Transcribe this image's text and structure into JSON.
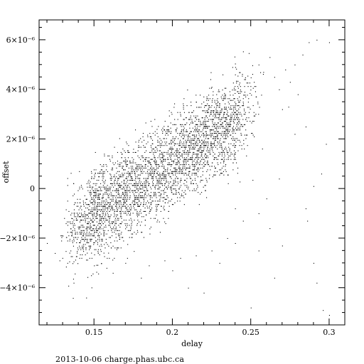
{
  "chart_data": {
    "type": "scatter",
    "xlabel": "delay",
    "ylabel": "offset",
    "xlim": [
      0.115,
      0.31
    ],
    "ylim": [
      -5.5e-06,
      6.8e-06
    ],
    "x_ticks": [
      {
        "value": 0.15,
        "label": "0.15"
      },
      {
        "value": 0.2,
        "label": "0.2"
      },
      {
        "value": 0.25,
        "label": "0.25"
      },
      {
        "value": 0.3,
        "label": "0.3"
      }
    ],
    "y_ticks": [
      {
        "value": 6e-06,
        "label": "6×10⁻⁶"
      },
      {
        "value": 4e-06,
        "label": "4×10⁻⁶"
      },
      {
        "value": 2e-06,
        "label": "2×10⁻⁶"
      },
      {
        "value": 0,
        "label": "0"
      },
      {
        "value": -2e-06,
        "label": "−2×10⁻⁶"
      },
      {
        "value": -4e-06,
        "label": "−4×10⁻⁶"
      }
    ],
    "grid": false,
    "marker_color": "#000000",
    "core_trend": {
      "x": [
        0.14,
        0.245
      ],
      "y": [
        -1.5e-06,
        3e-06
      ],
      "spread": 9e-07,
      "n_points": 3600
    },
    "points": [
      [
        0.12,
        -2.2e-06
      ],
      [
        0.125,
        -2.6e-06
      ],
      [
        0.128,
        -2.9e-06
      ],
      [
        0.13,
        -1.9e-06
      ],
      [
        0.133,
        -3e-06
      ],
      [
        0.137,
        -3.8e-06
      ],
      [
        0.145,
        -4.4e-06
      ],
      [
        0.158,
        -3.2e-06
      ],
      [
        0.18,
        -3.6e-06
      ],
      [
        0.2,
        -3.3e-06
      ],
      [
        0.22,
        -4.2e-06
      ],
      [
        0.23,
        -3e-06
      ],
      [
        0.24,
        -2.2e-06
      ],
      [
        0.255,
        -2.5e-06
      ],
      [
        0.262,
        -1.6e-06
      ],
      [
        0.265,
        -3.6e-06
      ],
      [
        0.27,
        -2.3e-06
      ],
      [
        0.285,
        -8e-07
      ],
      [
        0.286,
        -1.3e-06
      ],
      [
        0.29,
        -3e-06
      ],
      [
        0.292,
        -3.8e-06
      ],
      [
        0.296,
        -4.9e-06
      ],
      [
        0.3,
        -5.1e-06
      ],
      [
        0.25,
        -4.8e-06
      ],
      [
        0.21,
        -4e-06
      ],
      [
        0.298,
        1.8e-06
      ],
      [
        0.295,
        6e-07
      ],
      [
        0.29,
        1e-07
      ],
      [
        0.285,
        2.5e-06
      ],
      [
        0.28,
        3.8e-06
      ],
      [
        0.275,
        4.3e-06
      ],
      [
        0.27,
        3.2e-06
      ],
      [
        0.265,
        4.5e-06
      ],
      [
        0.262,
        5.3e-06
      ],
      [
        0.268,
        4e-06
      ],
      [
        0.272,
        4.8e-06
      ],
      [
        0.283,
        5.4e-06
      ],
      [
        0.287,
        5.9e-06
      ],
      [
        0.292,
        6e-06
      ],
      [
        0.3,
        5.9e-06
      ],
      [
        0.278,
        5e-06
      ],
      [
        0.255,
        5e-06
      ],
      [
        0.258,
        4.7e-06
      ],
      [
        0.252,
        4.3e-06
      ],
      [
        0.246,
        3.9e-06
      ],
      [
        0.24,
        4.6e-06
      ],
      [
        0.232,
        4.6e-06
      ],
      [
        0.228,
        3.8e-06
      ],
      [
        0.225,
        4.1e-06
      ],
      [
        0.215,
        3.5e-06
      ],
      [
        0.205,
        3e-06
      ],
      [
        0.19,
        2.4e-06
      ],
      [
        0.175,
        1.6e-06
      ],
      [
        0.165,
        1e-06
      ],
      [
        0.16,
        6e-07
      ],
      [
        0.155,
        -4e-07
      ],
      [
        0.255,
        -1e-06
      ],
      [
        0.245,
        -1.3e-06
      ],
      [
        0.24,
        -8e-07
      ],
      [
        0.235,
        -2e-06
      ],
      [
        0.225,
        -2.5e-06
      ],
      [
        0.215,
        -2.7e-06
      ],
      [
        0.205,
        -2.8e-06
      ],
      [
        0.195,
        -2.9e-06
      ],
      [
        0.185,
        -3.1e-06
      ],
      [
        0.17,
        -3e-06
      ],
      [
        0.162,
        -3.4e-06
      ],
      [
        0.15,
        -3.1e-06
      ],
      [
        0.142,
        -2.8e-06
      ],
      [
        0.135,
        -2.5e-06
      ],
      [
        0.132,
        -1.4e-06
      ],
      [
        0.136,
        -1.2e-06
      ],
      [
        0.26,
        -4e-07
      ],
      [
        0.268,
        4e-07
      ],
      [
        0.278,
        2.2e-06
      ],
      [
        0.274,
        3.3e-06
      ]
    ]
  },
  "footer": "2013-10-06 charge.phas.ubc.ca"
}
